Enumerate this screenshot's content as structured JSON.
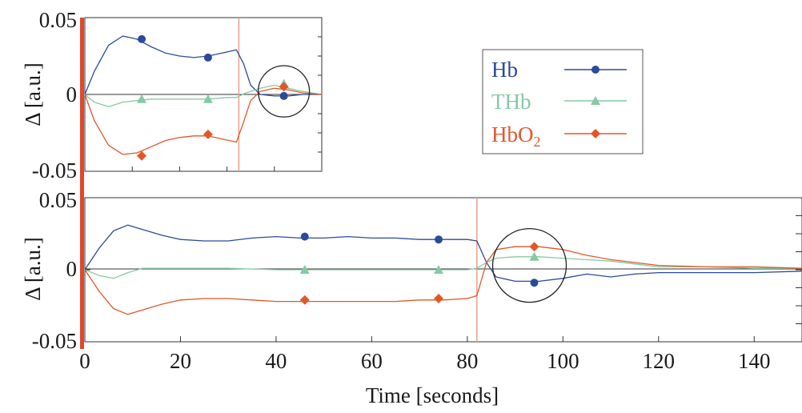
{
  "colors": {
    "hb": "#2b4a9c",
    "thb": "#86c9a4",
    "hbo2": "#e2572a",
    "stimulus_line": "#e8a08a",
    "left_bar": "#e2472a",
    "axis": "#333333",
    "background": "#ffffff"
  },
  "legend": {
    "items": [
      {
        "label": "Hb",
        "marker": "circle",
        "color_key": "hb"
      },
      {
        "label": "THb",
        "marker": "triangle",
        "color_key": "thb"
      },
      {
        "label": "HbO",
        "sub": "2",
        "marker": "diamond",
        "color_key": "hbo2"
      }
    ]
  },
  "chart_data": [
    {
      "id": "inset",
      "type": "line",
      "title": "",
      "ylabel": "Δ [a.u.]",
      "xlabel": "",
      "xlim": [
        0,
        50
      ],
      "ylim": [
        -0.05,
        0.05
      ],
      "yticks": [
        0.05,
        0,
        -0.05
      ],
      "ytick_labels": [
        "0.05",
        "0",
        "-0.05"
      ],
      "stimulus_end_x": 32.5,
      "highlight_circle": {
        "x": 42,
        "y": 0.002
      },
      "series": [
        {
          "name": "Hb",
          "color_key": "hb",
          "marker": "circle",
          "x": [
            0,
            2,
            5,
            8,
            11,
            14,
            17,
            20,
            23,
            26,
            29,
            32,
            33.5,
            35,
            37,
            40,
            43,
            46,
            50
          ],
          "y": [
            0,
            0.015,
            0.032,
            0.038,
            0.036,
            0.031,
            0.027,
            0.025,
            0.024,
            0.025,
            0.027,
            0.029,
            0.02,
            0.006,
            0.0,
            -0.001,
            -0.001,
            0,
            0
          ],
          "markers_x": [
            12,
            26,
            42
          ],
          "markers_y": [
            0.036,
            0.024,
            -0.001
          ]
        },
        {
          "name": "THb",
          "color_key": "thb",
          "marker": "triangle",
          "x": [
            0,
            2,
            5,
            8,
            11,
            14,
            20,
            26,
            30,
            32,
            34,
            37,
            40,
            43,
            46,
            50
          ],
          "y": [
            0,
            -0.005,
            -0.008,
            -0.005,
            -0.004,
            -0.003,
            -0.003,
            -0.003,
            -0.002,
            -0.002,
            0.001,
            0.004,
            0.006,
            0.004,
            0.002,
            0
          ],
          "markers_x": [
            12,
            26,
            42
          ],
          "markers_y": [
            -0.003,
            -0.003,
            0.007
          ]
        },
        {
          "name": "HbO2",
          "color_key": "hbo2",
          "marker": "diamond",
          "x": [
            0,
            2,
            5,
            8,
            11,
            14,
            17,
            20,
            23,
            26,
            29,
            32,
            33.5,
            35,
            37,
            40,
            43,
            46,
            50
          ],
          "y": [
            0,
            -0.017,
            -0.033,
            -0.039,
            -0.038,
            -0.034,
            -0.03,
            -0.028,
            -0.027,
            -0.027,
            -0.029,
            -0.031,
            -0.018,
            -0.004,
            0.002,
            0.004,
            0.003,
            0.001,
            0
          ],
          "markers_x": [
            12,
            26,
            42
          ],
          "markers_y": [
            -0.04,
            -0.026,
            0.005
          ]
        }
      ]
    },
    {
      "id": "main",
      "type": "line",
      "title": "",
      "ylabel": "Δ [a.u.]",
      "xlabel": "Time [seconds]",
      "xlim": [
        0,
        150
      ],
      "ylim": [
        -0.05,
        0.05
      ],
      "xticks": [
        0,
        20,
        40,
        60,
        80,
        100,
        120,
        140
      ],
      "xtick_labels": [
        "0",
        "20",
        "40",
        "60",
        "80",
        "100",
        "120",
        "140"
      ],
      "yticks": [
        0.05,
        0,
        -0.05
      ],
      "ytick_labels": [
        "0.05",
        "0",
        "-0.05"
      ],
      "stimulus_end_x": 82,
      "highlight_circle": {
        "x": 93,
        "y": 0.003
      },
      "series": [
        {
          "name": "Hb",
          "color_key": "hb",
          "marker": "circle",
          "x": [
            0,
            3,
            6,
            9,
            12,
            16,
            20,
            25,
            30,
            35,
            40,
            45,
            50,
            55,
            60,
            65,
            70,
            75,
            80,
            82,
            84,
            86,
            90,
            95,
            100,
            105,
            110,
            115,
            120,
            130,
            140,
            150
          ],
          "y": [
            0,
            0.015,
            0.027,
            0.031,
            0.028,
            0.024,
            0.021,
            0.02,
            0.02,
            0.022,
            0.023,
            0.022,
            0.022,
            0.023,
            0.022,
            0.022,
            0.021,
            0.021,
            0.021,
            0.02,
            0.005,
            -0.005,
            -0.008,
            -0.008,
            -0.006,
            -0.003,
            -0.005,
            -0.003,
            -0.002,
            -0.002,
            -0.002,
            -0.001
          ],
          "markers_x": [
            46,
            74,
            94
          ],
          "markers_y": [
            0.023,
            0.021,
            -0.009
          ]
        },
        {
          "name": "THb",
          "color_key": "thb",
          "marker": "triangle",
          "x": [
            0,
            3,
            6,
            9,
            12,
            20,
            30,
            40,
            50,
            60,
            70,
            80,
            82,
            84,
            86,
            90,
            95,
            100,
            105,
            110,
            115,
            120,
            130,
            140,
            150
          ],
          "y": [
            0,
            -0.004,
            -0.006,
            -0.002,
            0.001,
            0.001,
            0.001,
            0.0,
            0.0,
            0.0,
            0.0,
            0.0,
            0.001,
            0.005,
            0.008,
            0.009,
            0.009,
            0.008,
            0.007,
            0.006,
            0.004,
            0.002,
            0.002,
            0.001,
            0.001
          ],
          "markers_x": [
            46,
            74,
            94
          ],
          "markers_y": [
            0.0,
            0.0,
            0.009
          ]
        },
        {
          "name": "HbO2",
          "color_key": "hbo2",
          "marker": "diamond",
          "x": [
            0,
            3,
            6,
            9,
            12,
            16,
            20,
            25,
            30,
            35,
            40,
            45,
            50,
            55,
            60,
            65,
            70,
            75,
            80,
            82,
            84,
            86,
            90,
            95,
            100,
            105,
            110,
            115,
            120,
            130,
            140,
            150
          ],
          "y": [
            0,
            -0.015,
            -0.027,
            -0.031,
            -0.028,
            -0.024,
            -0.021,
            -0.02,
            -0.02,
            -0.021,
            -0.022,
            -0.022,
            -0.022,
            -0.022,
            -0.022,
            -0.022,
            -0.021,
            -0.021,
            -0.02,
            -0.018,
            0.005,
            0.014,
            0.016,
            0.016,
            0.014,
            0.01,
            0.007,
            0.005,
            0.003,
            0.002,
            0.002,
            0.001
          ],
          "markers_x": [
            46,
            74,
            94
          ],
          "markers_y": [
            -0.021,
            -0.02,
            0.016
          ]
        }
      ]
    }
  ]
}
